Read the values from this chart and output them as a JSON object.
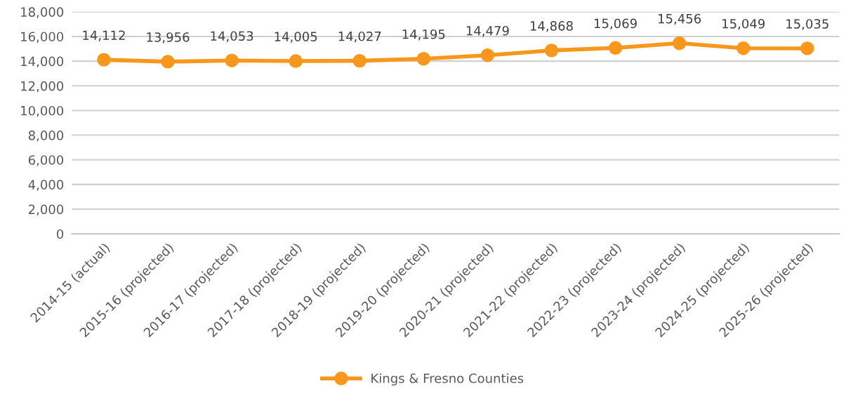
{
  "chart_data": {
    "type": "line",
    "categories": [
      "2014-15 (actual)",
      "2015-16 (projected)",
      "2016-17 (projected)",
      "2017-18 (projected)",
      "2018-19 (projected)",
      "2019-20 (projected)",
      "2020-21 (projected)",
      "2021-22 (projected)",
      "2022-23 (projected)",
      "2023-24 (projected)",
      "2024-25 (projected)",
      "2025-26 (projected)"
    ],
    "series": [
      {
        "name": "Kings & Fresno Counties",
        "color": "#f7981d",
        "values": [
          14112,
          13956,
          14053,
          14005,
          14027,
          14195,
          14479,
          14868,
          15069,
          15456,
          15049,
          15035
        ],
        "value_labels": [
          "14,112",
          "13,956",
          "14,053",
          "14,005",
          "14,027",
          "14,195",
          "14,479",
          "14,868",
          "15,069",
          "15,456",
          "15,049",
          "15,035"
        ]
      }
    ],
    "ylim": [
      0,
      18000
    ],
    "yticks": [
      {
        "value": 0,
        "label": "0"
      },
      {
        "value": 2000,
        "label": "2,000"
      },
      {
        "value": 4000,
        "label": "4,000"
      },
      {
        "value": 6000,
        "label": "6,000"
      },
      {
        "value": 8000,
        "label": "8,000"
      },
      {
        "value": 10000,
        "label": "10,000"
      },
      {
        "value": 12000,
        "label": "12,000"
      },
      {
        "value": 14000,
        "label": "14,000"
      },
      {
        "value": 16000,
        "label": "16,000"
      },
      {
        "value": 18000,
        "label": "18,000"
      }
    ],
    "grid": "y",
    "legend": "bottom",
    "marker": "circle",
    "line_style": "solid"
  }
}
